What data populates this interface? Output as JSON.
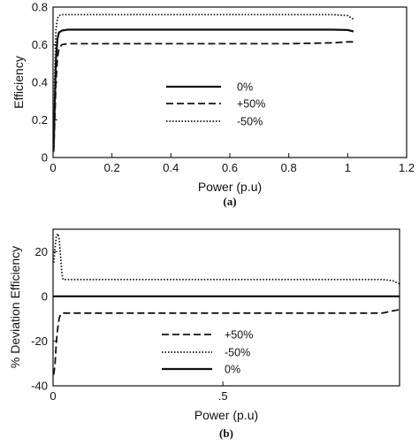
{
  "chart_data": [
    {
      "type": "line",
      "caption": "(a)",
      "xlabel": "Power (p.u)",
      "ylabel": "Efficiency",
      "xlim": [
        0,
        1.2
      ],
      "ylim": [
        0,
        0.8
      ],
      "xticks": [
        "0",
        "0.2",
        "0.4",
        "0.6",
        "0.8",
        "1",
        "1.2"
      ],
      "xtick_values": [
        0,
        0.2,
        0.4,
        0.6,
        0.8,
        1.0,
        1.2
      ],
      "yticks": [
        "0",
        "0.2",
        "0.4",
        "0.6",
        "0.8"
      ],
      "ytick_values": [
        0,
        0.2,
        0.4,
        0.6,
        0.8
      ],
      "grid": false,
      "legend_position": "center",
      "series": [
        {
          "name": "0%",
          "style": "solid",
          "x": [
            0.002,
            0.006,
            0.01,
            0.015,
            0.02,
            0.03,
            0.05,
            0.2,
            0.5,
            0.8,
            0.95,
            1.0,
            1.02
          ],
          "y": [
            0.05,
            0.3,
            0.52,
            0.63,
            0.665,
            0.675,
            0.68,
            0.68,
            0.68,
            0.68,
            0.68,
            0.678,
            0.67
          ]
        },
        {
          "name": "+50%",
          "style": "dashed",
          "x": [
            0.002,
            0.006,
            0.01,
            0.015,
            0.02,
            0.03,
            0.05,
            0.2,
            0.5,
            0.8,
            0.95,
            1.0,
            1.02
          ],
          "y": [
            0.03,
            0.2,
            0.4,
            0.53,
            0.58,
            0.6,
            0.605,
            0.605,
            0.605,
            0.605,
            0.61,
            0.615,
            0.615
          ]
        },
        {
          "name": "-50%",
          "style": "dotted",
          "x": [
            0.002,
            0.006,
            0.01,
            0.015,
            0.02,
            0.03,
            0.05,
            0.2,
            0.5,
            0.8,
            0.95,
            1.0,
            1.02
          ],
          "y": [
            0.1,
            0.45,
            0.68,
            0.74,
            0.755,
            0.76,
            0.76,
            0.76,
            0.76,
            0.76,
            0.76,
            0.755,
            0.735
          ]
        }
      ]
    },
    {
      "type": "line",
      "caption": "(b)",
      "xlabel": "Power (p.u)",
      "ylabel": "% Deviation Efficiency",
      "xlim": [
        0,
        1.02
      ],
      "ylim": [
        -40,
        30
      ],
      "xticks": [
        "0",
        ".5"
      ],
      "xtick_values": [
        0,
        0.5
      ],
      "yticks": [
        "-40",
        "-20",
        "0",
        "20"
      ],
      "ytick_values": [
        -40,
        -20,
        0,
        20
      ],
      "grid": false,
      "legend_position": "bottom-center",
      "series": [
        {
          "name": "+50%",
          "style": "dashed",
          "x": [
            0.002,
            0.006,
            0.01,
            0.014,
            0.018,
            0.022,
            0.03,
            0.05,
            0.3,
            0.6,
            0.9,
            0.97,
            1.0,
            1.02
          ],
          "y": [
            -35,
            -30,
            -20,
            -14,
            -10,
            -8,
            -7.5,
            -7.5,
            -7.5,
            -7.5,
            -7.5,
            -7.5,
            -6.5,
            -6
          ]
        },
        {
          "name": "-50%",
          "style": "dotted",
          "x": [
            0.002,
            0.006,
            0.01,
            0.014,
            0.018,
            0.022,
            0.026,
            0.03,
            0.05,
            0.3,
            0.6,
            0.9,
            0.97,
            1.0,
            1.02
          ],
          "y": [
            15,
            22,
            27,
            28,
            26,
            18,
            10,
            7.5,
            7.5,
            7.5,
            7.5,
            7.5,
            7.5,
            7,
            5.5
          ]
        },
        {
          "name": "0%",
          "style": "solid",
          "x": [
            0,
            1.02
          ],
          "y": [
            0,
            0
          ]
        }
      ]
    }
  ]
}
